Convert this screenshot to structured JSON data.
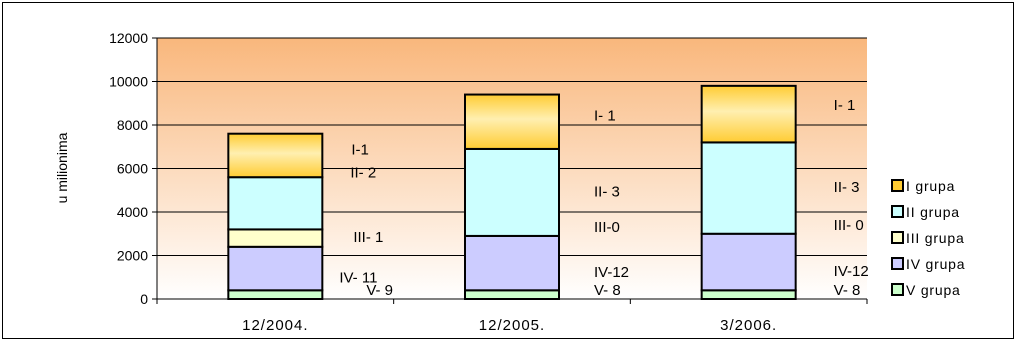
{
  "chart_data": {
    "type": "bar",
    "stacked": true,
    "categories": [
      "12/2004.",
      "12/2005.",
      "3/2006."
    ],
    "ylabel": "u milionima",
    "ylim": [
      0,
      12000
    ],
    "yticks": [
      "0",
      "2000",
      "4000",
      "6000",
      "8000",
      "10000",
      "12000"
    ],
    "series": [
      {
        "name": "V grupa",
        "color": "#ccffcc",
        "values": [
          400,
          400,
          400
        ],
        "labels": [
          "V- 9",
          "V- 8",
          "V- 8"
        ]
      },
      {
        "name": "IV grupa",
        "color": "#ccccff",
        "values": [
          2000,
          2500,
          2600
        ],
        "labels": [
          "IV- 11",
          "IV-12",
          "IV-12"
        ]
      },
      {
        "name": "III grupa",
        "color": "#ffffcc",
        "values": [
          800,
          0,
          0
        ],
        "labels": [
          "III- 1",
          "III-0",
          "III- 0"
        ]
      },
      {
        "name": "II grupa",
        "color": "#ccffff",
        "values": [
          2400,
          4000,
          4200
        ],
        "labels": [
          "II- 2",
          "II- 3",
          "II- 3"
        ]
      },
      {
        "name": "I grupa",
        "color": "#ffcc33",
        "values": [
          2000,
          2500,
          2600
        ],
        "labels": [
          "I-1",
          "I- 1",
          "I- 1"
        ]
      }
    ],
    "legend_position": "right",
    "legend_order": [
      "I grupa",
      "II grupa",
      "III grupa",
      "IV grupa",
      "V grupa"
    ],
    "plot_background": "gradient peach-to-white"
  }
}
